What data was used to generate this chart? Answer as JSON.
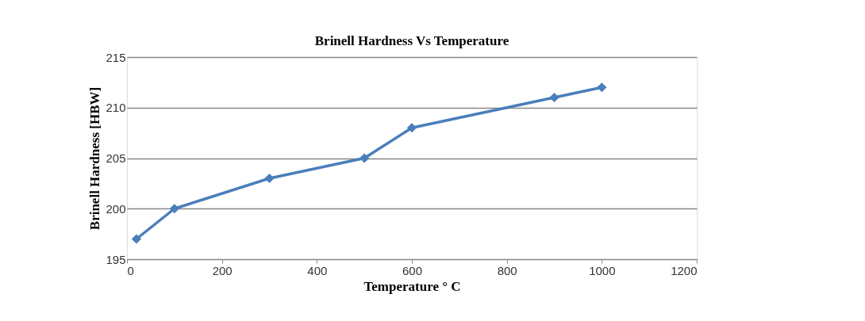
{
  "chart_data": {
    "type": "line",
    "title": "Brinell Hardness Vs Temperature",
    "xlabel": "Temperature  ° C",
    "ylabel": "Brinell Hardness  [HBW]",
    "x": [
      20,
      100,
      300,
      500,
      600,
      900,
      1000
    ],
    "series": [
      {
        "color": "#4a7ebb",
        "values": [
          197,
          200,
          203,
          205,
          208,
          211,
          212
        ]
      }
    ],
    "xlim": [
      0,
      1200
    ],
    "xticks": [
      0,
      200,
      400,
      600,
      800,
      1000,
      1200
    ],
    "ylim": [
      195,
      215
    ],
    "yticks": [
      195,
      200,
      205,
      210,
      215
    ],
    "grid": "y",
    "marker": "diamond",
    "line_style": "solid"
  }
}
